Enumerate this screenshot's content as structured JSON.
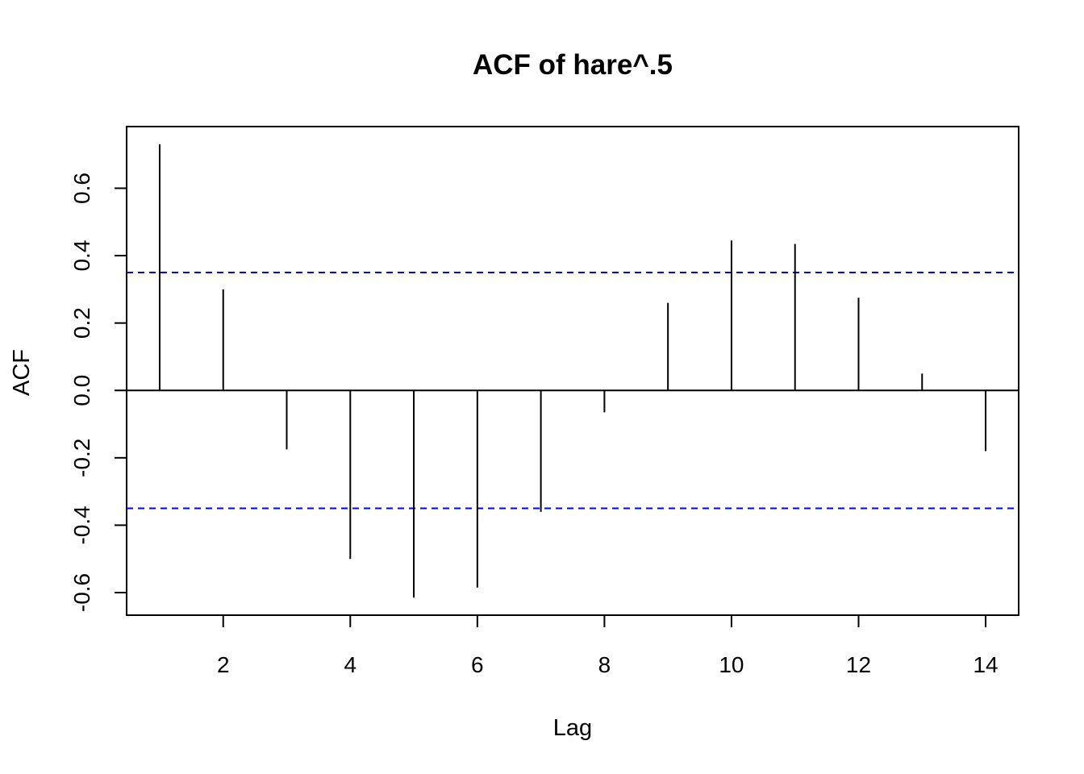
{
  "chart_data": {
    "type": "bar",
    "title": "ACF of hare^.5",
    "xlabel": "Lag",
    "ylabel": "ACF",
    "xlim": [
      0.48,
      14.52
    ],
    "ylim": [
      -0.667,
      0.783
    ],
    "x_ticks": [
      2,
      4,
      6,
      8,
      10,
      12,
      14
    ],
    "x_tick_labels": [
      "2",
      "4",
      "6",
      "8",
      "10",
      "12",
      "14"
    ],
    "y_ticks": [
      -0.6,
      -0.4,
      -0.2,
      0.0,
      0.2,
      0.4,
      0.6
    ],
    "y_tick_labels": [
      "-0.6",
      "-0.4",
      "-0.2",
      "0.0",
      "0.2",
      "0.4",
      "0.6"
    ],
    "series": [
      {
        "lags": [
          1,
          2,
          3,
          4,
          5,
          6,
          7,
          8,
          9,
          10,
          11,
          12,
          13,
          14
        ],
        "values": [
          0.73,
          0.3,
          -0.175,
          -0.5,
          -0.615,
          -0.585,
          -0.36,
          -0.065,
          0.26,
          0.445,
          0.435,
          0.275,
          0.05,
          -0.18
        ]
      }
    ],
    "confidence_bounds": [
      0.35,
      -0.35
    ],
    "zero_line": true,
    "grid": false,
    "colors": {
      "spikes": "#000000",
      "bounds": "#0000ff",
      "axes": "#000000"
    }
  }
}
